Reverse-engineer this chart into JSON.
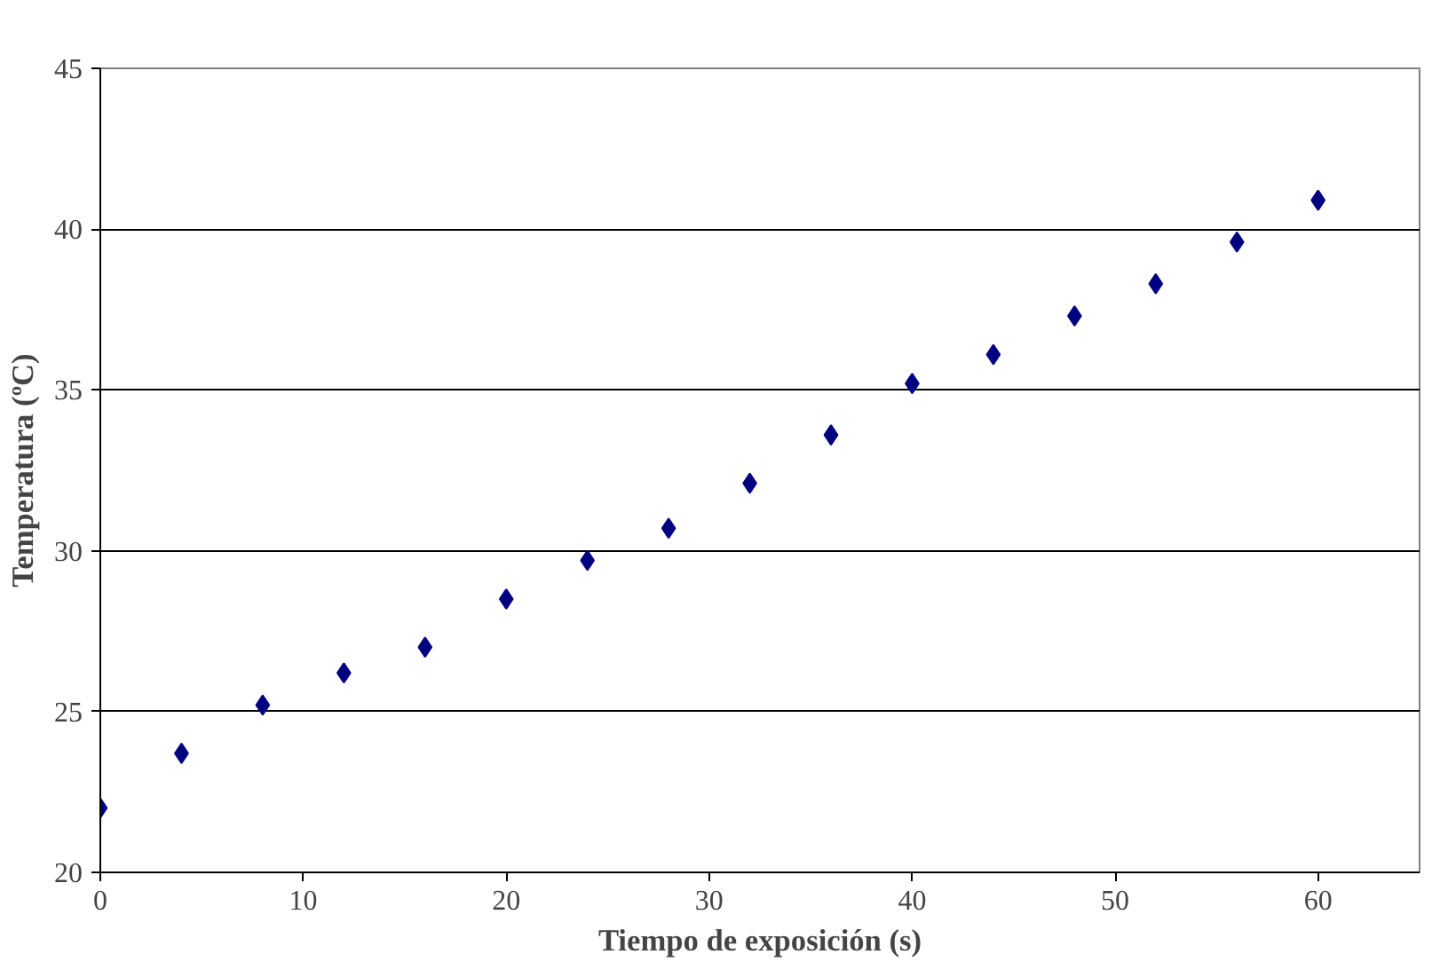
{
  "chart_data": {
    "type": "scatter",
    "xlabel": "Tiempo de exposición (s)",
    "ylabel": "Temperatura (ºC)",
    "x": [
      0,
      4,
      8,
      12,
      16,
      20,
      24,
      28,
      32,
      36,
      40,
      44,
      48,
      52,
      56,
      60
    ],
    "series": [
      {
        "color": "#000080",
        "values": [
          22.0,
          23.7,
          25.2,
          26.2,
          27.0,
          28.5,
          29.7,
          30.7,
          32.1,
          33.6,
          35.2,
          36.1,
          37.3,
          38.3,
          39.6,
          40.9
        ]
      }
    ],
    "xlim": [
      0,
      65
    ],
    "ylim": [
      20,
      45
    ],
    "xticks": [
      0,
      10,
      20,
      30,
      40,
      50,
      60
    ],
    "yticks": [
      20,
      25,
      30,
      35,
      40,
      45
    ],
    "grid": "y",
    "marker": "diamond"
  }
}
